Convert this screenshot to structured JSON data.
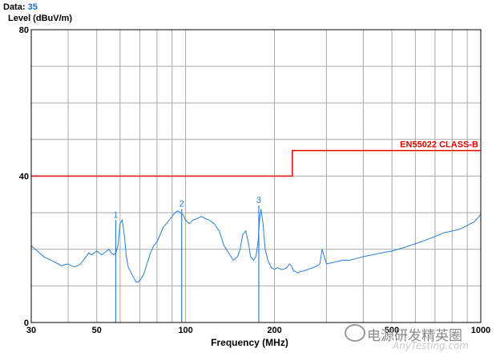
{
  "header": {
    "data_label": "Data:",
    "data_value": "35",
    "level_label": "Level (dBuV/m)"
  },
  "chart_data": {
    "type": "line",
    "title": "",
    "xlabel": "Frequency (MHz)",
    "ylabel": "Level (dBuV/m)",
    "x_scale": "log",
    "xlim": [
      30,
      1000
    ],
    "ylim": [
      0,
      80
    ],
    "grid": true,
    "x_ticks": [
      30,
      50,
      100,
      200,
      500,
      1000
    ],
    "x_tick_labels": [
      "30",
      "50",
      "100",
      "200",
      "500",
      "1000"
    ],
    "y_ticks": [
      0,
      40,
      80
    ],
    "y_tick_labels": [
      "0",
      "40",
      "80"
    ],
    "limit_line": {
      "name": "EN55022 CLASS-B",
      "color": "#e60000",
      "points": [
        [
          30,
          40
        ],
        [
          230,
          40
        ],
        [
          230,
          47
        ],
        [
          1000,
          47
        ]
      ]
    },
    "series": [
      {
        "color": "#2a7fd4",
        "x": [
          30,
          31,
          32,
          33,
          34,
          35,
          36,
          37,
          38,
          39,
          40,
          41,
          42,
          43,
          44,
          45,
          46,
          47,
          48,
          49,
          50,
          51,
          52,
          53,
          54,
          55,
          56,
          57,
          58,
          59,
          60,
          61,
          62,
          63,
          64,
          65,
          66,
          67,
          68,
          69,
          70,
          72,
          74,
          76,
          78,
          80,
          82,
          84,
          86,
          88,
          90,
          92,
          94,
          96,
          98,
          100,
          103,
          106,
          110,
          113,
          116,
          120,
          125,
          130,
          135,
          140,
          145,
          150,
          153,
          156,
          160,
          163,
          166,
          170,
          173,
          176,
          178,
          180,
          183,
          186,
          190,
          195,
          200,
          205,
          210,
          215,
          220,
          225,
          228,
          230,
          232,
          235,
          240,
          245,
          250,
          260,
          270,
          280,
          285,
          290,
          300,
          320,
          340,
          360,
          380,
          400,
          430,
          460,
          500,
          550,
          600,
          650,
          700,
          750,
          800,
          850,
          900,
          950,
          1000
        ],
        "y": [
          21,
          20,
          19,
          18,
          17.5,
          17,
          16.5,
          16,
          15.5,
          15.8,
          16,
          15.5,
          15.2,
          15.5,
          16,
          17,
          18,
          19,
          18.5,
          19,
          19.5,
          19,
          18.5,
          19,
          19.5,
          20,
          19,
          18.5,
          19,
          21,
          27,
          28,
          24,
          18,
          15,
          14,
          13,
          12,
          11,
          11,
          11.5,
          13,
          16,
          19,
          21,
          22,
          24,
          26,
          27,
          28,
          29,
          30,
          30.5,
          30,
          29.5,
          28,
          27,
          28,
          28.5,
          29,
          28.5,
          28,
          27,
          25,
          21,
          19,
          17,
          18,
          20,
          24,
          25,
          22,
          18,
          17,
          18,
          22,
          28,
          31,
          27,
          20,
          17,
          15,
          14.5,
          15,
          14.5,
          14.5,
          15,
          16,
          15.5,
          15,
          14,
          14,
          13.5,
          14,
          14,
          14.5,
          15,
          15.5,
          16,
          20,
          16,
          16.5,
          17,
          17,
          17.5,
          18,
          18.5,
          19,
          19.5,
          20.5,
          21.5,
          22.5,
          23.5,
          24.5,
          25,
          25.5,
          26.5,
          27.5,
          29.5
        ]
      }
    ],
    "markers": [
      {
        "label": "1",
        "x": 58,
        "y": 28
      },
      {
        "label": "2",
        "x": 97,
        "y": 31
      },
      {
        "label": "3",
        "x": 177,
        "y": 32
      }
    ]
  },
  "watermark": {
    "text_cn": "电源研发精英圈",
    "text_en": "AnyTesting.com"
  }
}
